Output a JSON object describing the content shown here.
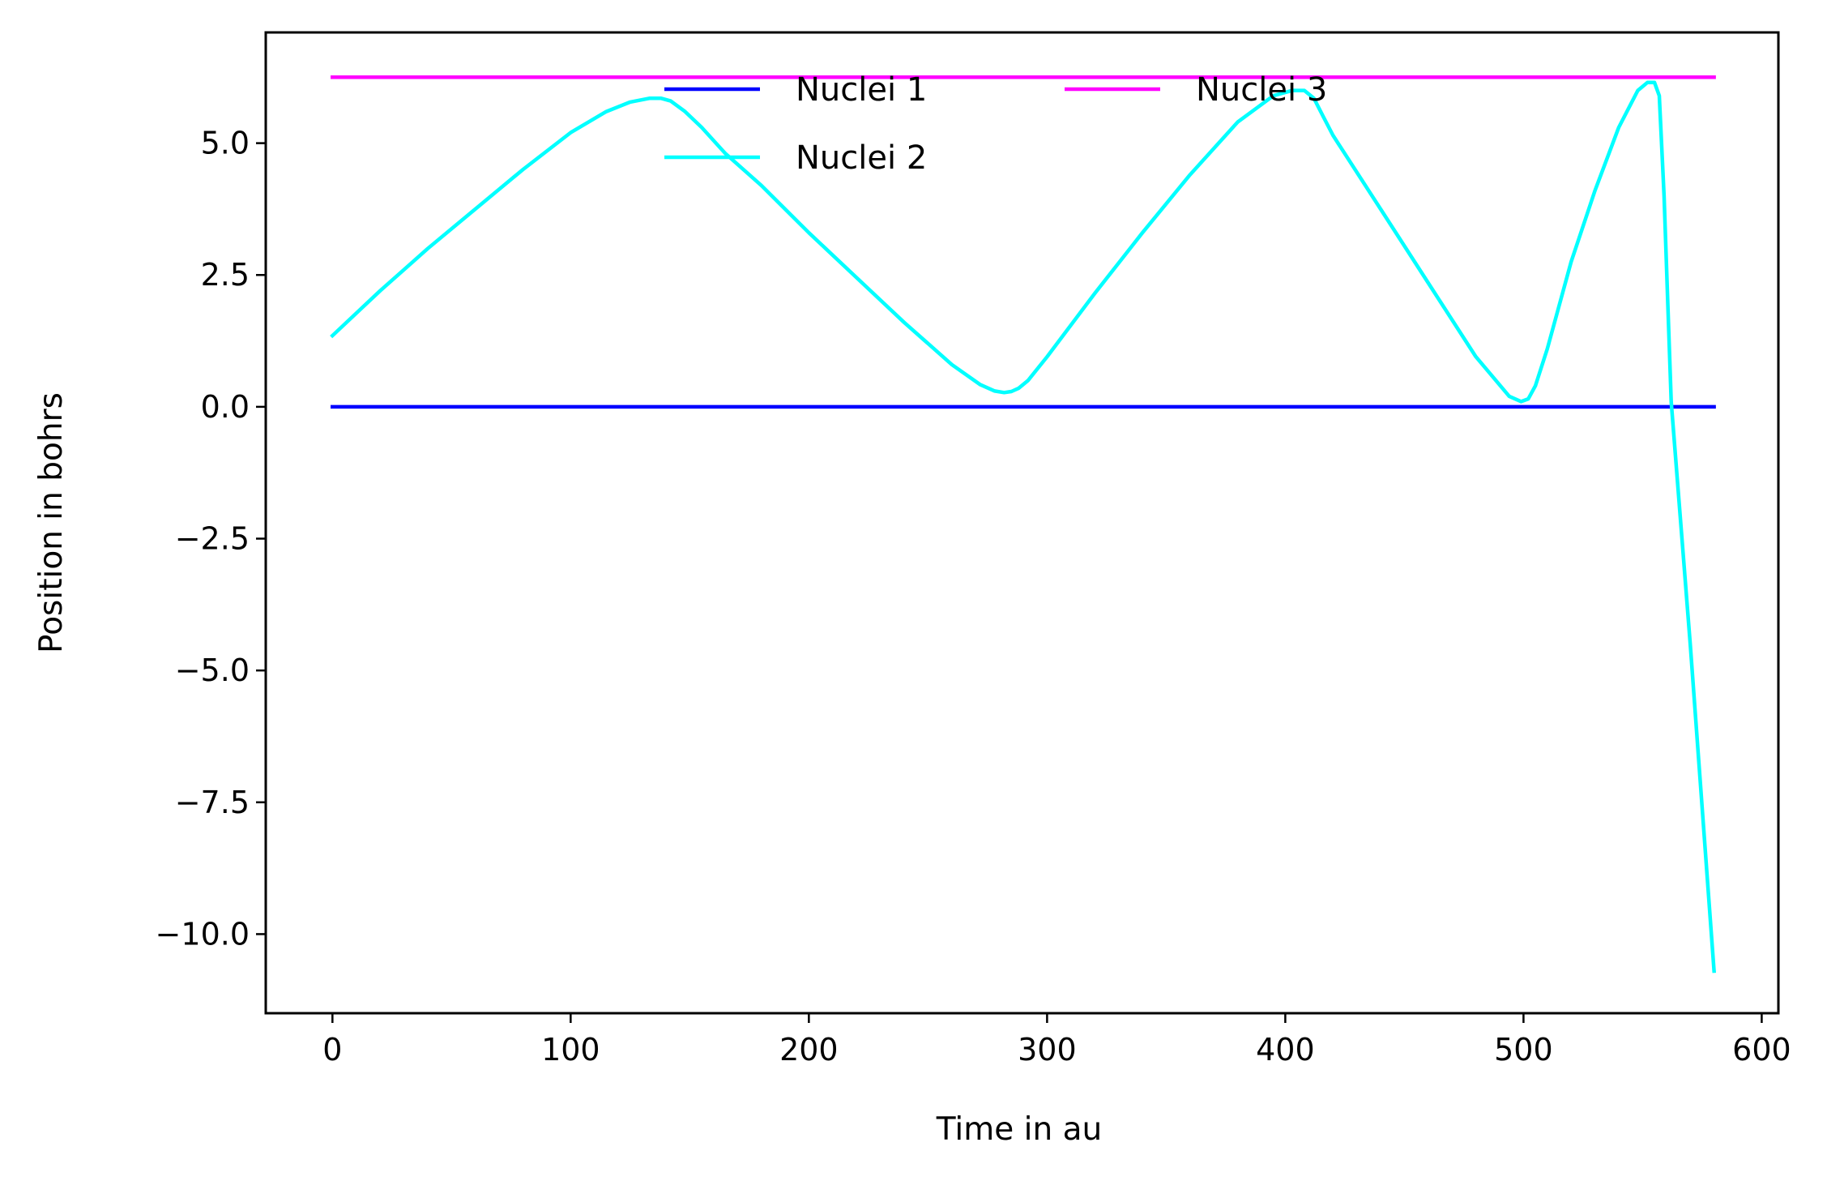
{
  "chart_data": {
    "type": "line",
    "title": "",
    "xlabel": "Time in au",
    "ylabel": "Position in bohrs",
    "xlim": [
      -28,
      607
    ],
    "ylim": [
      -11.5,
      7.1
    ],
    "xticks": [
      0,
      100,
      200,
      300,
      400,
      500,
      600
    ],
    "xtick_labels": [
      "0",
      "100",
      "200",
      "300",
      "400",
      "500",
      "600"
    ],
    "yticks": [
      -10.0,
      -7.5,
      -5.0,
      -2.5,
      0.0,
      2.5,
      5.0
    ],
    "ytick_labels": [
      "−10.0",
      "−7.5",
      "−5.0",
      "−2.5",
      "0.0",
      "2.5",
      "5.0"
    ],
    "grid": false,
    "legend": {
      "placement": "upper center",
      "columns": 2
    },
    "series": [
      {
        "name": "Nuclei 1",
        "color": "#0000ff",
        "x": [
          0,
          580
        ],
        "y": [
          0.0,
          0.0
        ]
      },
      {
        "name": "Nuclei 2",
        "color": "#00ffff",
        "x": [
          0,
          20,
          40,
          60,
          80,
          100,
          115,
          125,
          133,
          138,
          142,
          148,
          155,
          165,
          180,
          200,
          220,
          240,
          260,
          272,
          278,
          282,
          285,
          288,
          292,
          300,
          320,
          340,
          360,
          380,
          395,
          403,
          408,
          412,
          416,
          420,
          440,
          460,
          480,
          494,
          499,
          502,
          505,
          510,
          520,
          530,
          540,
          548,
          552,
          555,
          557,
          559,
          562,
          570,
          580
        ],
        "y": [
          1.35,
          2.2,
          3.0,
          3.75,
          4.5,
          5.2,
          5.6,
          5.78,
          5.85,
          5.85,
          5.8,
          5.6,
          5.3,
          4.8,
          4.2,
          3.3,
          2.45,
          1.6,
          0.8,
          0.42,
          0.3,
          0.27,
          0.29,
          0.35,
          0.5,
          0.95,
          2.15,
          3.3,
          4.4,
          5.4,
          5.9,
          6.0,
          6.0,
          5.85,
          5.5,
          5.15,
          3.75,
          2.35,
          0.95,
          0.2,
          0.1,
          0.15,
          0.4,
          1.1,
          2.75,
          4.1,
          5.3,
          6.0,
          6.15,
          6.15,
          5.9,
          4.0,
          0.1,
          -4.5,
          -10.7
        ]
      },
      {
        "name": "Nuclei 3",
        "color": "#ff00ff",
        "x": [
          0,
          580
        ],
        "y": [
          6.25,
          6.25
        ]
      }
    ]
  }
}
